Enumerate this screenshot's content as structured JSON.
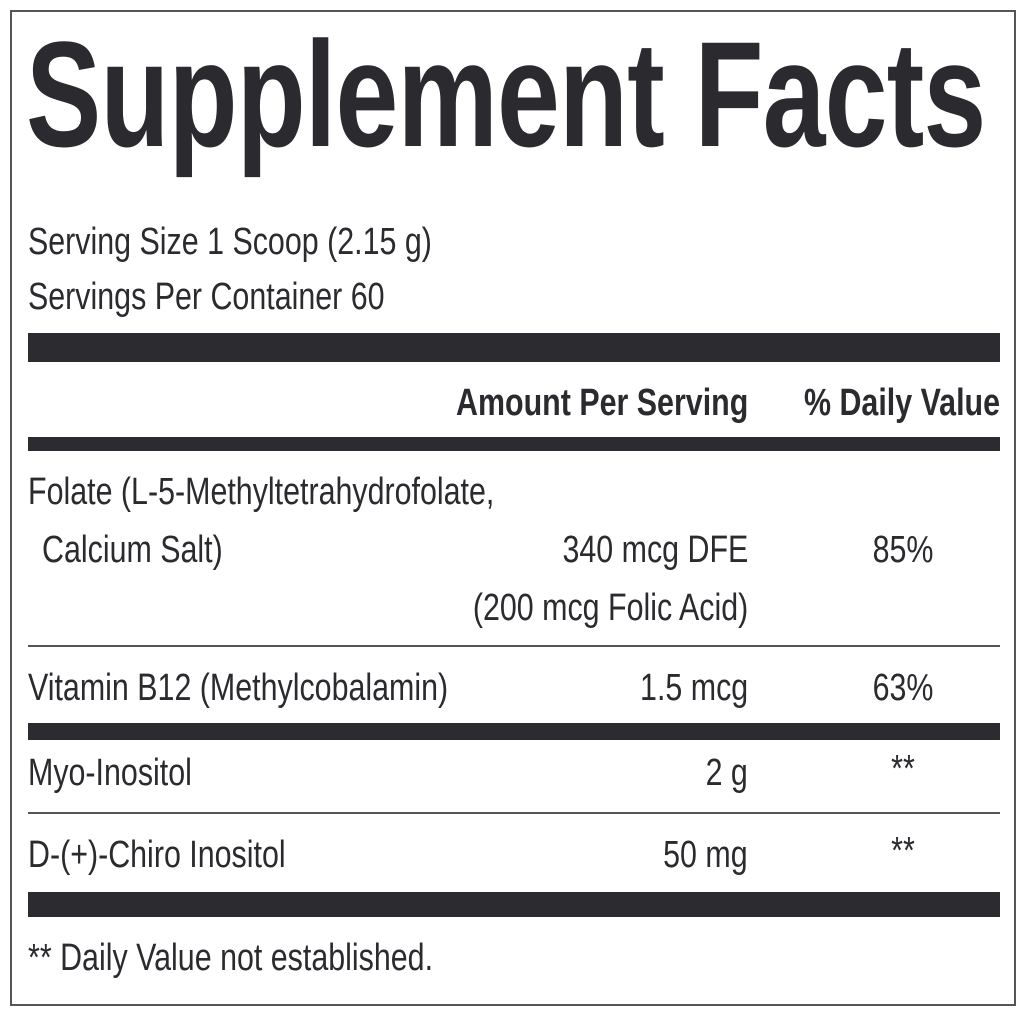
{
  "title": "Supplement Facts",
  "serving_size": "Serving Size 1 Scoop (2.15 g)",
  "servings_per_container": "Servings Per Container 60",
  "header": {
    "amount": "Amount Per Serving",
    "daily_value": "% Daily Value"
  },
  "rows": [
    {
      "name_line1": "Folate (L-5-Methyltetrahydrofolate,",
      "name_line2": "Calcium Salt)",
      "amount": "340 mcg DFE",
      "amount_note": "(200 mcg Folic Acid)",
      "dv": "85%"
    },
    {
      "name": "Vitamin B12 (Methylcobalamin)",
      "amount": "1.5 mcg",
      "dv": "63%"
    },
    {
      "name": "Myo-Inositol",
      "amount": "2 g",
      "dv": "**"
    },
    {
      "name": "D-(+)-Chiro Inositol",
      "amount": "50 mg",
      "dv": "**"
    }
  ],
  "footnote": "** Daily Value not established."
}
